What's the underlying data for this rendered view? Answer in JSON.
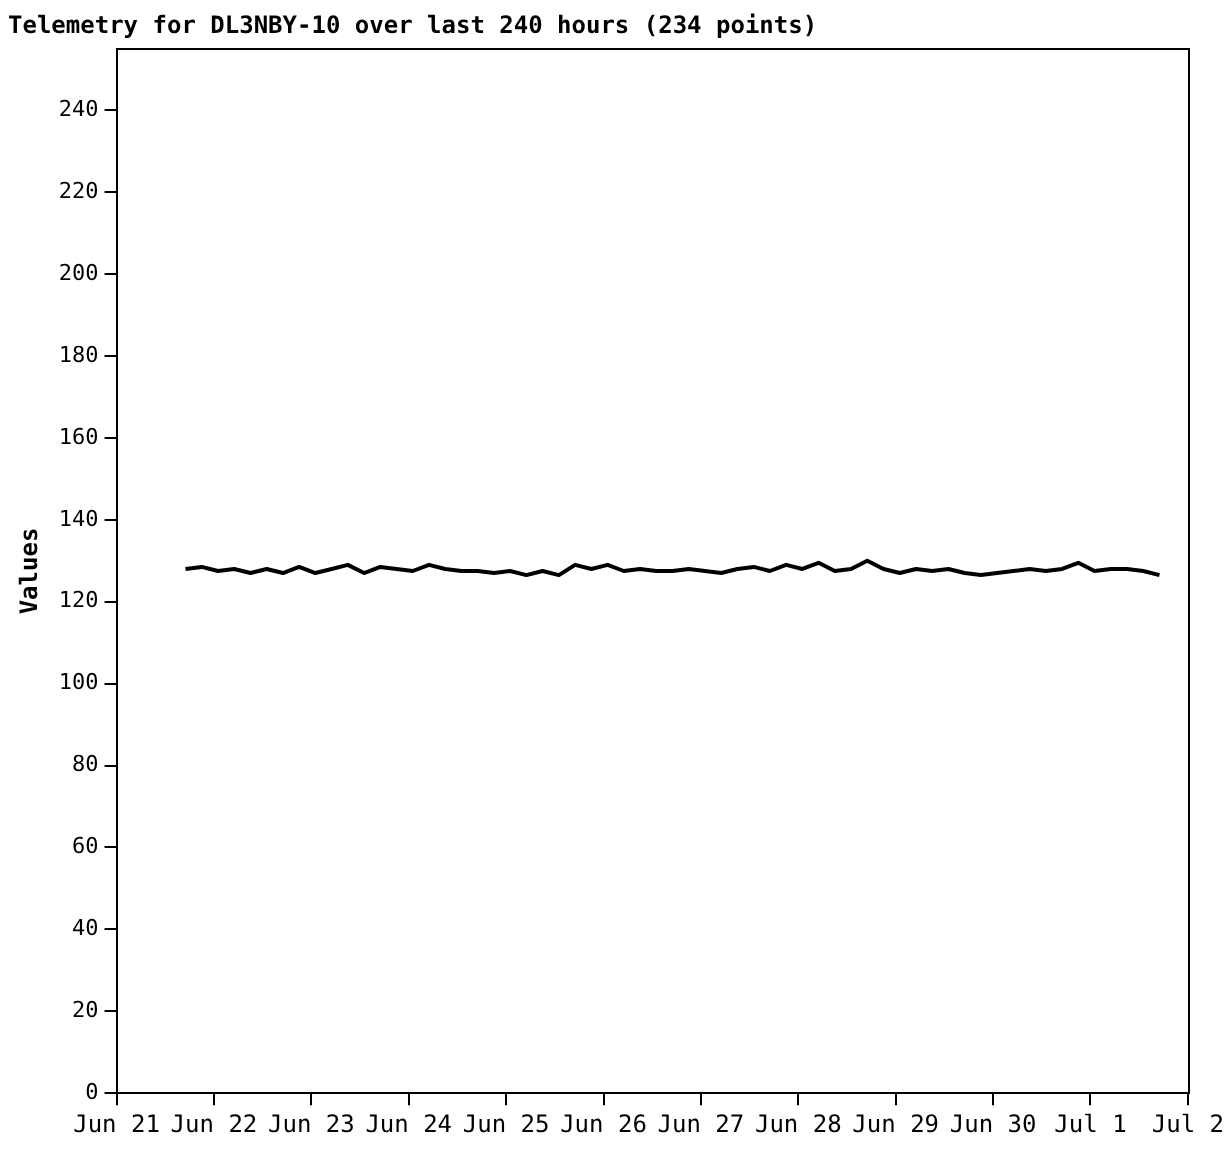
{
  "chart_data": {
    "type": "line",
    "title": "Telemetry for DL3NBY-10 over last 240 hours (234 points)",
    "ylabel": "Values",
    "marker": "none",
    "grid": false,
    "color": "#000000",
    "x": [
      "--06-21T17:00",
      "--06-21T21:00",
      "--06-22T01:00",
      "--06-22T05:00",
      "--06-22T09:00",
      "--06-22T13:00",
      "--06-22T17:00",
      "--06-22T21:00",
      "--06-23T01:00",
      "--06-23T05:00",
      "--06-23T09:00",
      "--06-23T13:00",
      "--06-23T17:00",
      "--06-23T21:00",
      "--06-24T01:00",
      "--06-24T05:00",
      "--06-24T09:00",
      "--06-24T13:00",
      "--06-24T17:00",
      "--06-24T21:00",
      "--06-25T01:00",
      "--06-25T05:00",
      "--06-25T09:00",
      "--06-25T13:00",
      "--06-25T17:00",
      "--06-25T21:00",
      "--06-26T01:00",
      "--06-26T05:00",
      "--06-26T09:00",
      "--06-26T13:00",
      "--06-26T17:00",
      "--06-26T21:00",
      "--06-27T01:00",
      "--06-27T05:00",
      "--06-27T09:00",
      "--06-27T13:00",
      "--06-27T17:00",
      "--06-27T21:00",
      "--06-28T01:00",
      "--06-28T05:00",
      "--06-28T09:00",
      "--06-28T13:00",
      "--06-28T17:00",
      "--06-28T21:00",
      "--06-29T01:00",
      "--06-29T05:00",
      "--06-29T09:00",
      "--06-29T13:00",
      "--06-29T17:00",
      "--06-29T21:00",
      "--06-30T01:00",
      "--06-30T05:00",
      "--06-30T09:00",
      "--06-30T13:00",
      "--06-30T17:00",
      "--06-30T21:00",
      "--07-01T01:00",
      "--07-01T05:00",
      "--07-01T09:00",
      "--07-01T13:00",
      "--07-01T17:00"
    ],
    "values": [
      128,
      128.5,
      127.5,
      128,
      127,
      128,
      127,
      128.5,
      127,
      128,
      129,
      127,
      128.5,
      128,
      127.5,
      129,
      128,
      127.5,
      127.5,
      127,
      127.5,
      126.5,
      127.5,
      126.5,
      129,
      128,
      129,
      127.5,
      128,
      127.5,
      127.5,
      128,
      127.5,
      127,
      128,
      128.5,
      127.5,
      129,
      128,
      129.5,
      127.5,
      128,
      130,
      128,
      127,
      128,
      127.5,
      128,
      127,
      126.5,
      127,
      127.5,
      128,
      127.5,
      128,
      129.5,
      127.5,
      128,
      128,
      127.5,
      126.5
    ],
    "xlim": [
      "--06-21",
      "--07-02"
    ],
    "xticks": [
      {
        "value": "--06-21",
        "label": "Jun 21"
      },
      {
        "value": "--06-22",
        "label": "Jun 22"
      },
      {
        "value": "--06-23",
        "label": "Jun 23"
      },
      {
        "value": "--06-24",
        "label": "Jun 24"
      },
      {
        "value": "--06-25",
        "label": "Jun 25"
      },
      {
        "value": "--06-26",
        "label": "Jun 26"
      },
      {
        "value": "--06-27",
        "label": "Jun 27"
      },
      {
        "value": "--06-28",
        "label": "Jun 28"
      },
      {
        "value": "--06-29",
        "label": "Jun 29"
      },
      {
        "value": "--06-30",
        "label": "Jun 30"
      },
      {
        "value": "--07-01",
        "label": "Jul 1"
      },
      {
        "value": "--07-02",
        "label": "Jul 2"
      }
    ],
    "ylim": [
      0,
      255
    ],
    "yticks": [
      0,
      20,
      40,
      60,
      80,
      100,
      120,
      140,
      160,
      180,
      200,
      220,
      240
    ]
  }
}
